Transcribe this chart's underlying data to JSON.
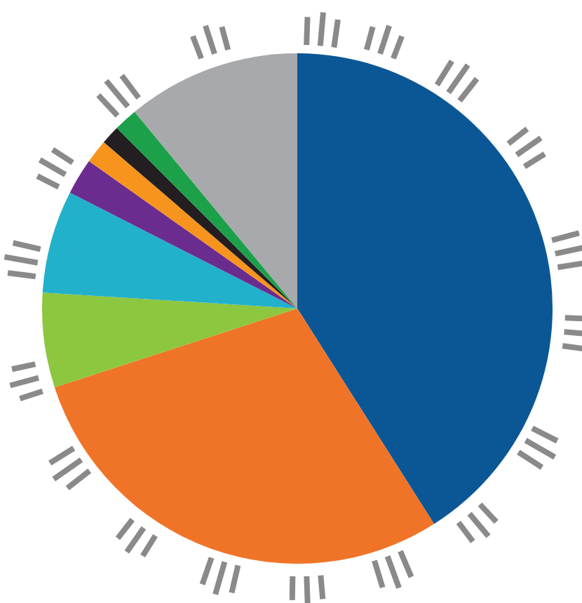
{
  "chart_data": {
    "type": "pie",
    "categories": [
      null,
      null,
      null,
      null,
      null,
      null,
      null,
      null,
      null
    ],
    "values": [
      41,
      29,
      6,
      6.5,
      2.3,
      1.5,
      1.2,
      1.5,
      11
    ],
    "colors": [
      "#0b5796",
      "#f07428",
      "#8dc63f",
      "#22b1cb",
      "#6b2c8f",
      "#f7941d",
      "#231f20",
      "#1ca14a",
      "#a7a9ac"
    ]
  }
}
